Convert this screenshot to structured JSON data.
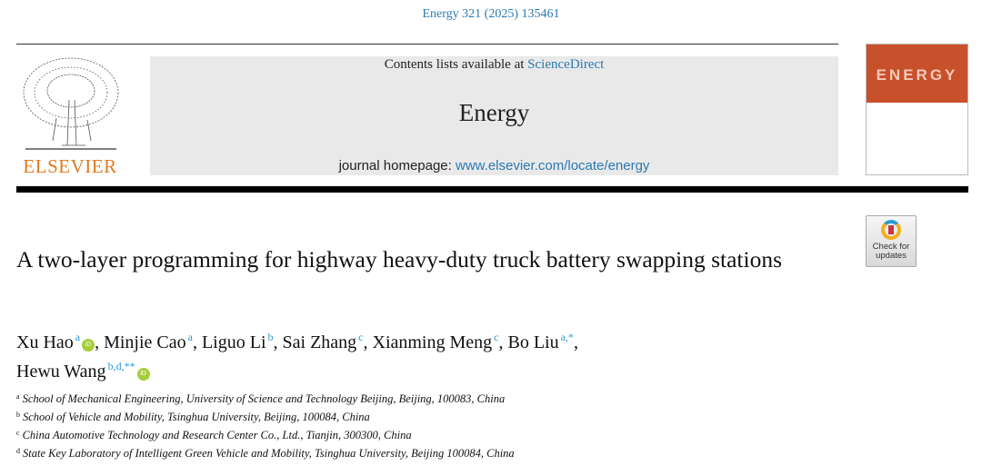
{
  "journal_ref": "Energy 321 (2025) 135461",
  "publisher": "ELSEVIER",
  "header": {
    "contents_prefix": "Contents lists available at ",
    "contents_link": "ScienceDirect",
    "journal_name": "Energy",
    "homepage_prefix": "journal homepage: ",
    "homepage_link": "www.elsevier.com/locate/energy"
  },
  "cover": {
    "title": "ENERGY"
  },
  "check_updates": {
    "line1": "Check for",
    "line2": "updates"
  },
  "title": "A two-layer programming for highway heavy-duty truck battery swapping stations",
  "authors": [
    {
      "name": "Xu Hao",
      "sup": "a",
      "orcid": true
    },
    {
      "name": "Minjie Cao",
      "sup": "a",
      "orcid": false
    },
    {
      "name": "Liguo Li",
      "sup": "b",
      "orcid": false
    },
    {
      "name": "Sai Zhang",
      "sup": "c",
      "orcid": false
    },
    {
      "name": "Xianming Meng",
      "sup": "c",
      "orcid": false
    },
    {
      "name": "Bo Liu",
      "sup": "a,*",
      "orcid": false
    },
    {
      "name": "Hewu Wang",
      "sup": "b,d,**",
      "orcid": true
    }
  ],
  "affiliations": [
    {
      "key": "a",
      "text": "School of Mechanical Engineering, University of Science and Technology Beijing, Beijing, 100083, China"
    },
    {
      "key": "b",
      "text": "School of Vehicle and Mobility, Tsinghua University, Beijing, 100084, China"
    },
    {
      "key": "c",
      "text": "China Automotive Technology and Research Center Co., Ltd., Tianjin, 300300, China"
    },
    {
      "key": "d",
      "text": "State Key Laboratory of Intelligent Green Vehicle and Mobility, Tsinghua University, Beijing 100084, China"
    }
  ],
  "colors": {
    "link": "#2a7ab0",
    "publisher": "#e07a1f",
    "cover": "#c8502a",
    "orcid": "#a6ce39"
  }
}
